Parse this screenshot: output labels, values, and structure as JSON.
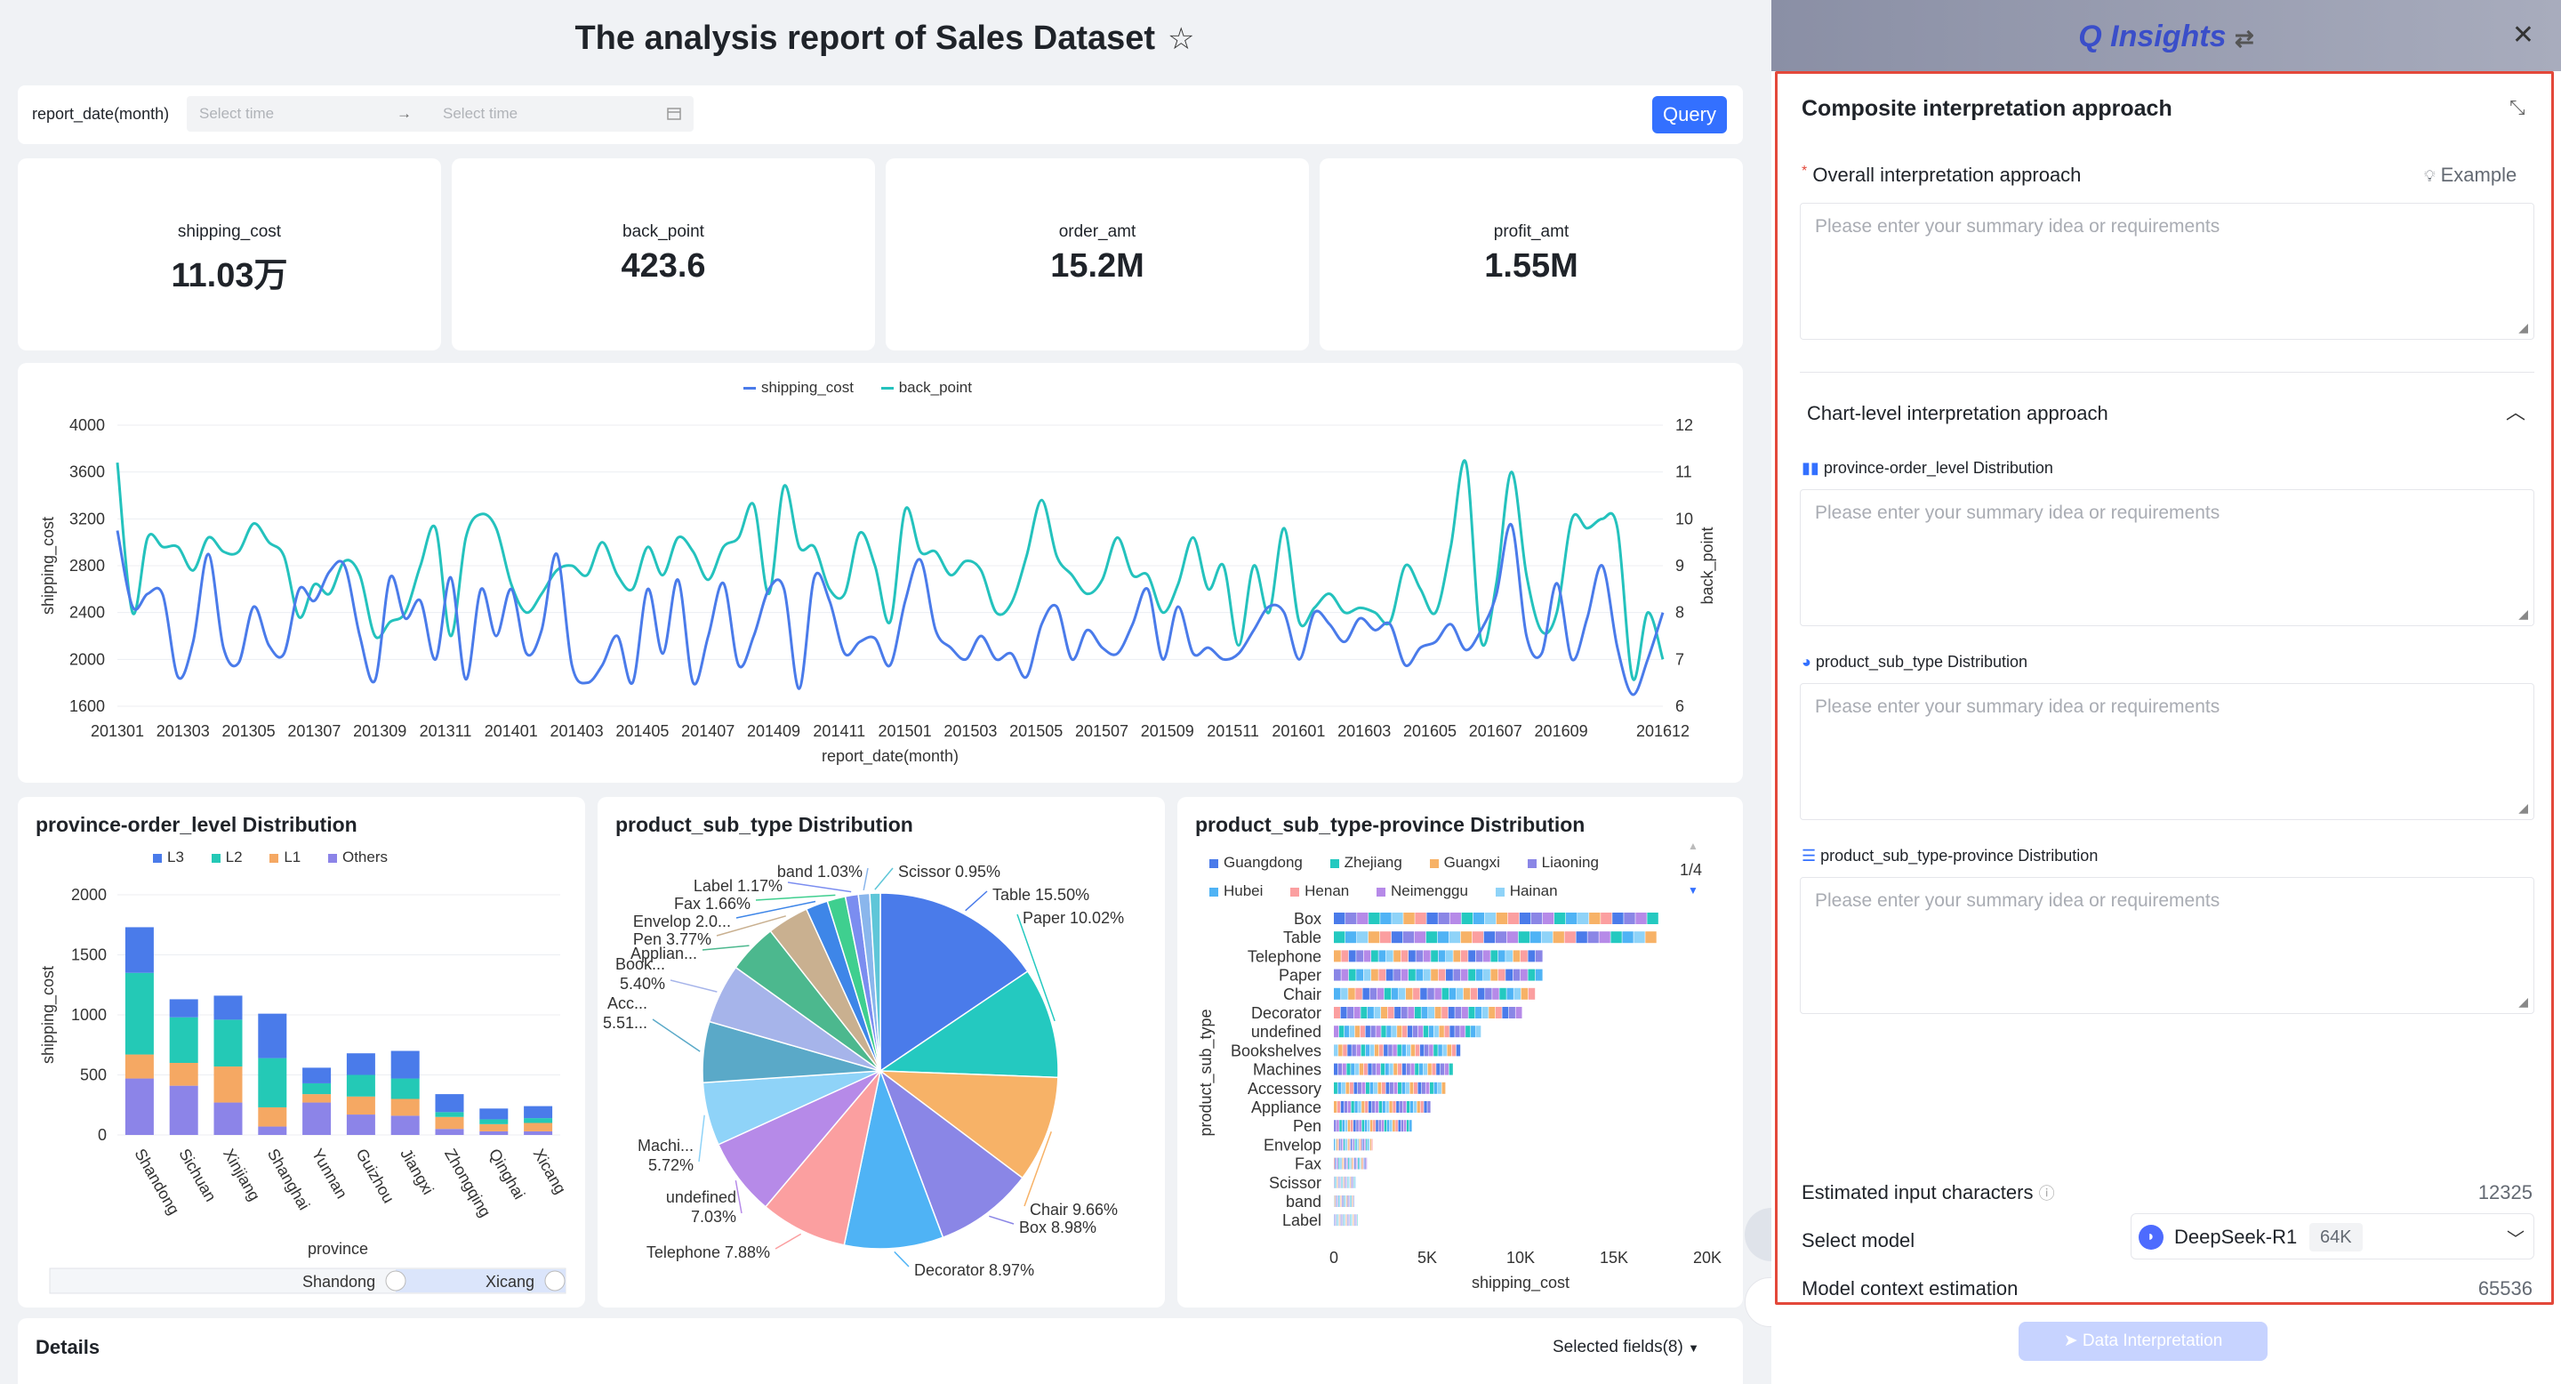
{
  "report": {
    "title": "The analysis report of Sales Dataset",
    "star_icon": "☆"
  },
  "filter": {
    "label": "report_date(month)",
    "start_placeholder": "Select time",
    "end_placeholder": "Select time",
    "query_label": "Query"
  },
  "kpis": [
    {
      "label": "shipping_cost",
      "value": "11.03万"
    },
    {
      "label": "back_point",
      "value": "423.6"
    },
    {
      "label": "order_amt",
      "value": "15.2M"
    },
    {
      "label": "profit_amt",
      "value": "1.55M"
    }
  ],
  "chart_data": [
    {
      "type": "line",
      "legend": [
        "shipping_cost",
        "back_point"
      ],
      "xlabel": "report_date(month)",
      "ylabel": "shipping_cost",
      "y2label": "back_point",
      "ylim": [
        1600,
        4000
      ],
      "y2lim": [
        6,
        12
      ],
      "yticks": [
        "4000",
        "3600",
        "3200",
        "2800",
        "2400",
        "2000",
        "1600"
      ],
      "y2ticks": [
        "12",
        "11",
        "10",
        "9",
        "8",
        "7",
        "6"
      ],
      "xticks": [
        "201301",
        "201303",
        "201305",
        "201307",
        "201309",
        "201311",
        "201401",
        "201403",
        "201405",
        "201407",
        "201409",
        "201411",
        "201501",
        "201503",
        "201505",
        "201507",
        "201509",
        "201511",
        "201601",
        "201603",
        "201605",
        "201607",
        "201609",
        "201612"
      ],
      "colors": [
        "#4a7bea",
        "#24c2bd"
      ],
      "series": [
        {
          "name": "shipping_cost",
          "values": [
            3100,
            2450,
            2560,
            2550,
            1850,
            2150,
            2900,
            2100,
            1970,
            2450,
            2120,
            2050,
            2600,
            2500,
            2750,
            2800,
            2200,
            1820,
            2700,
            2350,
            2500,
            2000,
            2700,
            1830,
            2600,
            2200,
            2600,
            2050,
            2250,
            2900,
            1950,
            1800,
            1950,
            2200,
            1800,
            2600,
            2050,
            2680,
            1800,
            2200,
            2650,
            1950,
            2200,
            2600,
            2600,
            1750,
            2700,
            2500,
            2050,
            2150,
            2180,
            1950,
            2500,
            2850,
            2250,
            2100,
            2000,
            2200,
            2000,
            2050,
            1850,
            2300,
            2450,
            2000,
            2250,
            2100,
            2050,
            2300,
            2600,
            2000,
            2450,
            2050,
            2100,
            2000,
            2050,
            2250,
            2450,
            2400,
            2000,
            2400,
            2300,
            2150,
            2350,
            2250,
            2300,
            1950,
            2100,
            2150,
            2300,
            2080,
            2250,
            2550,
            3150,
            2200,
            2050,
            2650,
            2000,
            2350,
            2800,
            2100,
            1700,
            2000,
            2400
          ]
        },
        {
          "name": "back_point",
          "values": [
            11.2,
            8.0,
            9.6,
            9.4,
            9.4,
            8.9,
            9.6,
            9.3,
            9.3,
            9.9,
            9.5,
            9.2,
            7.9,
            8.6,
            8.4,
            9.1,
            8.8,
            7.5,
            7.8,
            8.0,
            9.0,
            9.8,
            7.5,
            9.6,
            10.1,
            9.8,
            8.6,
            8.0,
            8.4,
            8.9,
            9.0,
            8.8,
            9.5,
            8.8,
            8.5,
            9.4,
            8.8,
            9.6,
            9.3,
            8.7,
            9.4,
            9.6,
            10.3,
            8.4,
            10.7,
            9.4,
            9.4,
            8.5,
            8.4,
            9.7,
            9.0,
            7.8,
            10.2,
            9.3,
            9.3,
            8.8,
            9.1,
            8.9,
            8.0,
            8.2,
            9.2,
            10.4,
            9.2,
            8.8,
            8.4,
            8.7,
            9.6,
            8.8,
            8.8,
            8.0,
            8.6,
            9.6,
            8.5,
            9.0,
            7.3,
            9.0,
            8.0,
            9.8,
            7.8,
            8.1,
            8.4,
            8.0,
            8.1,
            8.0,
            7.8,
            9.0,
            8.5,
            8.0,
            9.4,
            11.2,
            7.4,
            8.6,
            11.0,
            8.8,
            7.6,
            8.0,
            10.0,
            9.8,
            10.0,
            9.8,
            6.6,
            8.0,
            7.0
          ]
        }
      ]
    },
    {
      "type": "bar",
      "title": "province-order_level Distribution",
      "categories": [
        "Shandong",
        "Sichuan",
        "Xinjiang",
        "Shanghai",
        "Yunnan",
        "Guizhou",
        "Jiangxi",
        "Zhongqing",
        "Qinghai",
        "Xicang"
      ],
      "xlabel": "province",
      "ylabel": "shipping_cost",
      "ylim": [
        0,
        2000
      ],
      "yticks": [
        "2000",
        "1500",
        "1000",
        "500",
        "0"
      ],
      "series": [
        {
          "name": "Others",
          "color": "#8c84e8",
          "values": [
            470,
            410,
            270,
            70,
            270,
            170,
            160,
            50,
            30,
            30
          ]
        },
        {
          "name": "L1",
          "color": "#f5a863",
          "values": [
            200,
            190,
            300,
            160,
            70,
            150,
            140,
            100,
            60,
            70
          ]
        },
        {
          "name": "L2",
          "color": "#24c9b6",
          "values": [
            680,
            380,
            390,
            410,
            90,
            180,
            170,
            40,
            40,
            40
          ]
        },
        {
          "name": "L3",
          "color": "#4a7bea",
          "values": [
            380,
            150,
            200,
            370,
            130,
            180,
            230,
            150,
            90,
            100
          ]
        }
      ],
      "legend": [
        "L3",
        "L2",
        "L1",
        "Others"
      ],
      "zoom": {
        "start": "Shandong",
        "end": "Xicang"
      }
    },
    {
      "type": "pie",
      "title": "product_sub_type Distribution",
      "slices": [
        {
          "label": "Table",
          "value": 15.5,
          "text": "Table 15.50%",
          "color": "#4a7bea"
        },
        {
          "label": "Paper",
          "value": 10.02,
          "text": "Paper 10.02%",
          "color": "#24c9c0"
        },
        {
          "label": "Chair",
          "value": 9.66,
          "text": "Chair 9.66%",
          "color": "#f7b267"
        },
        {
          "label": "Box",
          "value": 8.98,
          "text": "Box 8.98%",
          "color": "#8a86e6"
        },
        {
          "label": "Decorator",
          "value": 8.97,
          "text": "Decorator 8.97%",
          "color": "#4fb3f5"
        },
        {
          "label": "Telephone",
          "value": 7.88,
          "text": "Telephone 7.88%",
          "color": "#fb9fa0"
        },
        {
          "label": "undefined",
          "value": 7.03,
          "text": "undefined\n7.03%",
          "color": "#b68ae8"
        },
        {
          "label": "Machi...",
          "value": 5.72,
          "text": "Machi...\n5.72%",
          "color": "#8fd3f8"
        },
        {
          "label": "Acc...",
          "value": 5.51,
          "text": "Acc...\n5.51...",
          "color": "#5aa9c8"
        },
        {
          "label": "Book...",
          "value": 5.4,
          "text": "Book...\n5.40%",
          "color": "#a6b4ea"
        },
        {
          "label": "Applian...",
          "value": 4.5,
          "text": "Applian...",
          "color": "#4cb88e"
        },
        {
          "label": "Pen",
          "value": 3.77,
          "text": "Pen 3.77%",
          "color": "#c9b090"
        },
        {
          "label": "Envelop",
          "value": 2.0,
          "text": "Envelop 2.0...",
          "color": "#3e86e8"
        },
        {
          "label": "Fax",
          "value": 1.66,
          "text": "Fax 1.66%",
          "color": "#3fcf8f"
        },
        {
          "label": "Label",
          "value": 1.17,
          "text": "Label 1.17%",
          "color": "#7b8df0"
        },
        {
          "label": "band",
          "value": 1.03,
          "text": "band 1.03%",
          "color": "#8ab6ec"
        },
        {
          "label": "Scissor",
          "value": 0.95,
          "text": "Scissor 0.95%",
          "color": "#5fc6d8"
        }
      ]
    },
    {
      "type": "bar",
      "orientation": "horizontal",
      "title": "product_sub_type-province Distribution",
      "categories": [
        "Box",
        "Table",
        "Telephone",
        "Paper",
        "Chair",
        "Decorator",
        "undefined",
        "Bookshelves",
        "Machines",
        "Accessory",
        "Appliance",
        "Pen",
        "Envelop",
        "Fax",
        "Scissor",
        "band",
        "Label"
      ],
      "values": [
        17400,
        17300,
        11200,
        11200,
        10800,
        10100,
        7900,
        6800,
        6400,
        6000,
        5200,
        4200,
        2100,
        1800,
        1200,
        1100,
        1300
      ],
      "xlabel": "shipping_cost",
      "ylabel": "product_sub_type",
      "xticks": [
        "0",
        "5K",
        "10K",
        "15K",
        "20K"
      ],
      "xlim": [
        0,
        20000
      ],
      "legend": [
        {
          "name": "Guangdong",
          "color": "#4a7bea"
        },
        {
          "name": "Zhejiang",
          "color": "#24c9c0"
        },
        {
          "name": "Guangxi",
          "color": "#f7b267"
        },
        {
          "name": "Liaoning",
          "color": "#8a86e6"
        },
        {
          "name": "Hubei",
          "color": "#4fb3f5"
        },
        {
          "name": "Henan",
          "color": "#fb9fa0"
        },
        {
          "name": "Neimenggu",
          "color": "#b68ae8"
        },
        {
          "name": "Hainan",
          "color": "#8fd3f8"
        }
      ],
      "legend_page": "1/4"
    }
  ],
  "details": {
    "title": "Details",
    "selected_fields": "Selected fields(8)"
  },
  "panel": {
    "title": "Q Insights",
    "swap_icon": "⇄",
    "close_icon": "✕",
    "section_title": "Composite interpretation approach",
    "overall_label": "Overall interpretation approach",
    "required_mark": "*",
    "example_label": "Example",
    "placeholder": "Please enter your summary idea or requirements",
    "chart_level_label": "Chart-level interpretation approach",
    "charts": [
      {
        "label": "province-order_level Distribution"
      },
      {
        "label": "product_sub_type Distribution"
      },
      {
        "label": "product_sub_type-province Distribution"
      }
    ],
    "estimated_label": "Estimated input characters",
    "estimated_value": "12325",
    "select_model_label": "Select model",
    "model_name": "DeepSeek-R1",
    "model_ctx": "64K",
    "context_label": "Model context estimation",
    "context_value": "65536",
    "button_label": "Data Interpretation"
  }
}
